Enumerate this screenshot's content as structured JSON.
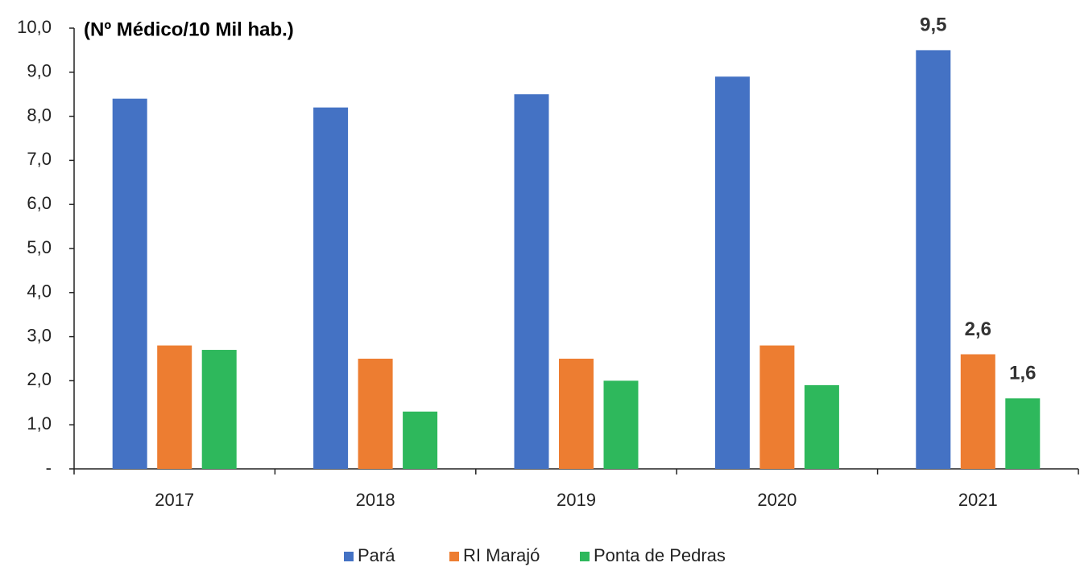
{
  "chart_data": {
    "type": "bar",
    "title": "(Nº Médico/10 Mil hab.)",
    "categories": [
      "2017",
      "2018",
      "2019",
      "2020",
      "2021"
    ],
    "series": [
      {
        "name": "Pará",
        "color": "#4472c4",
        "values": [
          8.4,
          8.2,
          8.5,
          8.9,
          9.5
        ],
        "value_labels": [
          null,
          null,
          null,
          null,
          "9,5"
        ]
      },
      {
        "name": "RI Marajó",
        "color": "#ed7d31",
        "values": [
          2.8,
          2.5,
          2.5,
          2.8,
          2.6
        ],
        "value_labels": [
          null,
          null,
          null,
          null,
          "2,6"
        ]
      },
      {
        "name": "Ponta de Pedras",
        "color": "#2eb85c",
        "values": [
          2.7,
          1.3,
          2.0,
          1.9,
          1.6
        ],
        "value_labels": [
          null,
          null,
          null,
          null,
          "1,6"
        ]
      }
    ],
    "ylim": [
      0,
      10
    ],
    "yticks": [
      {
        "value": 0,
        "label": "-"
      },
      {
        "value": 1,
        "label": "1,0"
      },
      {
        "value": 2,
        "label": "2,0"
      },
      {
        "value": 3,
        "label": "3,0"
      },
      {
        "value": 4,
        "label": "4,0"
      },
      {
        "value": 5,
        "label": "5,0"
      },
      {
        "value": 6,
        "label": "6,0"
      },
      {
        "value": 7,
        "label": "7,0"
      },
      {
        "value": 8,
        "label": "8,0"
      },
      {
        "value": 9,
        "label": "9,0"
      },
      {
        "value": 10,
        "label": "10,0"
      }
    ],
    "grid": false,
    "legend": "bottom"
  }
}
